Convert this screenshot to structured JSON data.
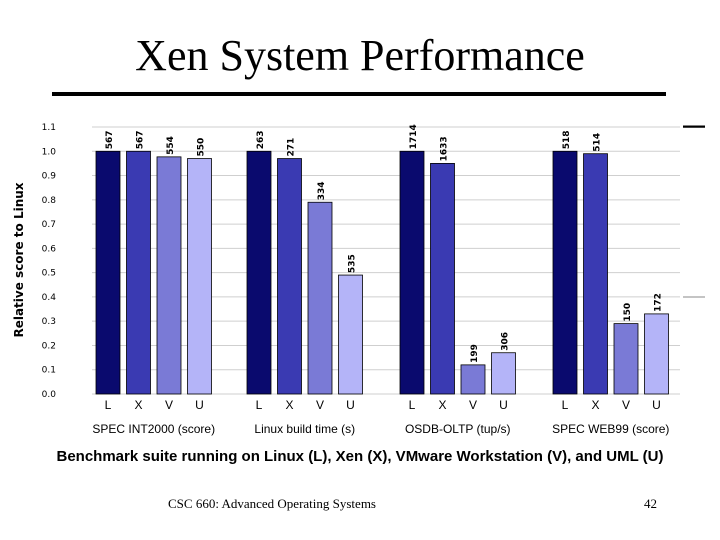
{
  "slide": {
    "title": "Xen System Performance",
    "caption": "Benchmark suite running on Linux (L), Xen (X), VMware Workstation (V), and UML (U)",
    "footer_course": "CSC 660: Advanced Operating Systems",
    "page_number": "42"
  },
  "chart_data": {
    "type": "bar",
    "ylabel": "Relative score to Linux",
    "ylim": [
      0,
      1.1
    ],
    "yticks": [
      0.0,
      0.1,
      0.2,
      0.3,
      0.4,
      0.5,
      0.6,
      0.7,
      0.8,
      0.9,
      1.0,
      1.1
    ],
    "ytick_labels": [
      "0.0",
      "0.1",
      "0.2",
      "0.3",
      "0.4",
      "0.5",
      "0.6",
      "0.7",
      "0.8",
      "0.9",
      "1.0",
      "1.1"
    ],
    "bar_labels": [
      "L",
      "X",
      "V",
      "U"
    ],
    "colors": [
      "#0a0a6e",
      "#3a3ab2",
      "#7a7ad6",
      "#b4b4f8"
    ],
    "groups": [
      {
        "name": "SPEC INT2000 (score)",
        "values": [
          1.0,
          1.0,
          0.977,
          0.97
        ],
        "data_labels": [
          "567",
          "567",
          "554",
          "550"
        ]
      },
      {
        "name": "Linux build time (s)",
        "values": [
          1.0,
          0.97,
          0.79,
          0.49
        ],
        "data_labels": [
          "263",
          "271",
          "334",
          "535"
        ]
      },
      {
        "name": "OSDB-OLTP (tup/s)",
        "values": [
          1.0,
          0.95,
          0.12,
          0.17
        ],
        "data_labels": [
          "1714",
          "1633",
          "199",
          "306"
        ]
      },
      {
        "name": "SPEC WEB99 (score)",
        "values": [
          1.0,
          0.99,
          0.29,
          0.33
        ],
        "data_labels": [
          "518",
          "514",
          "150",
          "172"
        ]
      }
    ]
  }
}
